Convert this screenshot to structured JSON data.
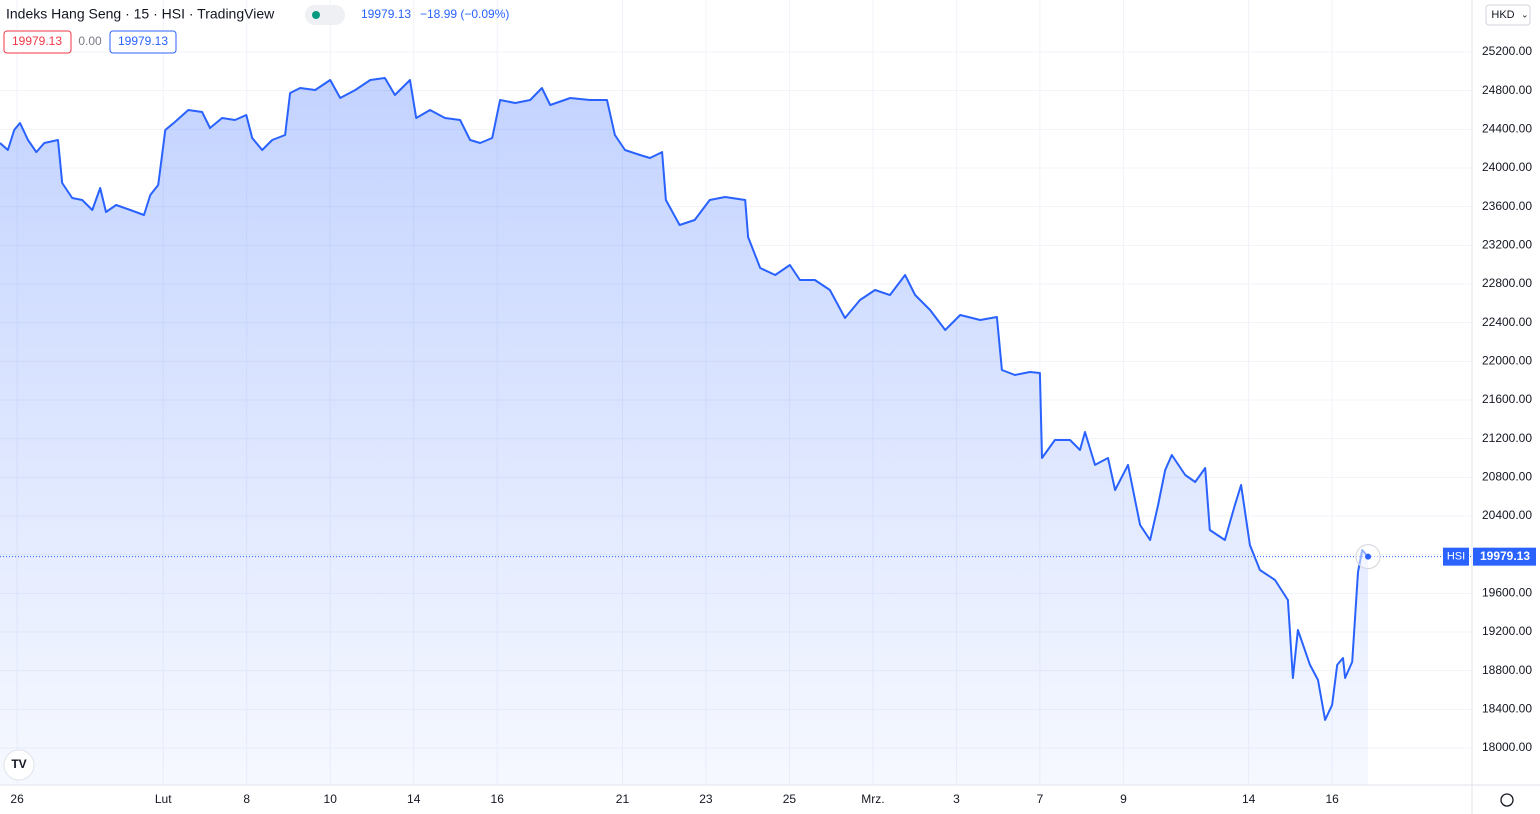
{
  "chart_data": {
    "type": "area",
    "title": "Indeks Hang Seng · 15 · HSI · TradingView",
    "change": "−18.99 (−0.09%)",
    "spread_label": "0.00",
    "currency": "HKD",
    "last_label": "HSI",
    "logo": "TV",
    "grid": true,
    "xlim": [
      -0.41,
      34.85
    ],
    "ylim": [
      17617,
      25738
    ],
    "xticks": [
      {
        "value": 0,
        "label": "26"
      },
      {
        "value": 3.5,
        "label": "Lut"
      },
      {
        "value": 5.5,
        "label": "8"
      },
      {
        "value": 7.5,
        "label": "10"
      },
      {
        "value": 9.5,
        "label": "14"
      },
      {
        "value": 11.5,
        "label": "16"
      },
      {
        "value": 14.5,
        "label": "21"
      },
      {
        "value": 16.5,
        "label": "23"
      },
      {
        "value": 18.5,
        "label": "25"
      },
      {
        "value": 20.5,
        "label": "Mrz."
      },
      {
        "value": 22.5,
        "label": "3"
      },
      {
        "value": 24.5,
        "label": "7"
      },
      {
        "value": 26.5,
        "label": "9"
      },
      {
        "value": 29.5,
        "label": "14"
      },
      {
        "value": 31.5,
        "label": "16"
      }
    ],
    "yticks": [
      {
        "value": 18000,
        "label": "18000.00"
      },
      {
        "value": 18400,
        "label": "18400.00"
      },
      {
        "value": 18800,
        "label": "18800.00"
      },
      {
        "value": 19200,
        "label": "19200.00"
      },
      {
        "value": 19600,
        "label": "19600.00"
      },
      {
        "value": 20000,
        "label": "20000.00"
      },
      {
        "value": 20400,
        "label": "20400.00"
      },
      {
        "value": 20800,
        "label": "20800.00"
      },
      {
        "value": 21200,
        "label": "21200.00"
      },
      {
        "value": 21600,
        "label": "21600.00"
      },
      {
        "value": 22000,
        "label": "22000.00"
      },
      {
        "value": 22400,
        "label": "22400.00"
      },
      {
        "value": 22800,
        "label": "22800.00"
      },
      {
        "value": 23200,
        "label": "23200.00"
      },
      {
        "value": 23600,
        "label": "23600.00"
      },
      {
        "value": 24000,
        "label": "24000.00"
      },
      {
        "value": 24400,
        "label": "24400.00"
      },
      {
        "value": 24800,
        "label": "24800.00"
      },
      {
        "value": 25200,
        "label": "25200.00"
      }
    ],
    "series": [
      {
        "name": "HSI",
        "color": "#2962ff",
        "x": [
          -0.41,
          -0.22,
          -0.07,
          0.07,
          0.26,
          0.46,
          0.65,
          0.98,
          1.08,
          1.32,
          1.56,
          1.8,
          1.99,
          2.13,
          2.37,
          2.71,
          3.04,
          3.19,
          3.38,
          3.55,
          3.78,
          4.1,
          4.43,
          4.62,
          4.91,
          5.22,
          5.49,
          5.63,
          5.87,
          6.11,
          6.42,
          6.54,
          6.78,
          7.14,
          7.5,
          7.74,
          8.1,
          8.46,
          8.81,
          9.05,
          9.41,
          9.56,
          9.89,
          10.25,
          10.61,
          10.85,
          11.09,
          11.38,
          11.57,
          11.93,
          12.29,
          12.57,
          12.77,
          13.25,
          13.72,
          14.13,
          14.32,
          14.56,
          14.92,
          15.16,
          15.45,
          15.54,
          15.87,
          16.23,
          16.59,
          16.96,
          17.44,
          17.51,
          17.8,
          18.16,
          18.51,
          18.75,
          19.11,
          19.47,
          19.83,
          20.19,
          20.55,
          20.91,
          21.27,
          21.51,
          21.87,
          22.23,
          22.59,
          23.07,
          23.47,
          23.59,
          23.9,
          24.26,
          24.5,
          24.55,
          24.86,
          25.22,
          25.46,
          25.58,
          25.82,
          26.13,
          26.3,
          26.61,
          26.9,
          27.14,
          27.33,
          27.5,
          27.66,
          27.98,
          28.22,
          28.46,
          28.57,
          28.93,
          29.17,
          29.32,
          29.53,
          29.77,
          30.13,
          30.44,
          30.56,
          30.68,
          30.97,
          31.16,
          31.33,
          31.5,
          31.62,
          31.76,
          31.81,
          31.98,
          32.12,
          32.22,
          32.36
        ],
        "values": [
          24259,
          24186,
          24393,
          24466,
          24290,
          24165,
          24259,
          24290,
          23845,
          23690,
          23669,
          23565,
          23793,
          23545,
          23617,
          23565,
          23514,
          23721,
          23824,
          24393,
          24476,
          24600,
          24579,
          24414,
          24517,
          24497,
          24548,
          24310,
          24186,
          24290,
          24341,
          24776,
          24828,
          24807,
          24910,
          24724,
          24807,
          24910,
          24931,
          24755,
          24910,
          24517,
          24600,
          24517,
          24497,
          24290,
          24259,
          24310,
          24703,
          24672,
          24703,
          24828,
          24652,
          24724,
          24703,
          24703,
          24341,
          24186,
          24134,
          24103,
          24165,
          23669,
          23410,
          23462,
          23669,
          23700,
          23669,
          23286,
          22965,
          22893,
          22997,
          22841,
          22841,
          22738,
          22448,
          22634,
          22738,
          22686,
          22893,
          22686,
          22531,
          22324,
          22479,
          22428,
          22459,
          21910,
          21859,
          21890,
          21879,
          21000,
          21186,
          21186,
          21083,
          21269,
          20928,
          21000,
          20669,
          20928,
          20307,
          20152,
          20514,
          20876,
          21031,
          20824,
          20752,
          20896,
          20255,
          20152,
          20514,
          20721,
          20100,
          19841,
          19738,
          19531,
          18724,
          19221,
          18859,
          18703,
          18290,
          18445,
          18859,
          18931,
          18724,
          18890,
          19821,
          20048,
          19979.13
        ]
      }
    ]
  }
}
